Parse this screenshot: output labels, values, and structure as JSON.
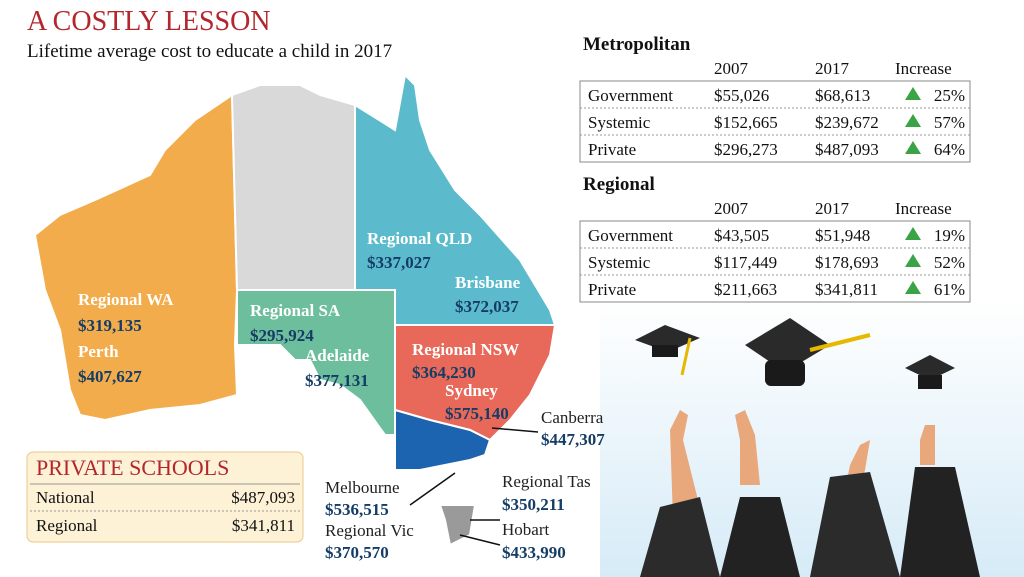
{
  "header": {
    "title": "A COSTLY LESSON",
    "subtitle": "Lifetime average cost to educate a child in 2017"
  },
  "map": {
    "regions": [
      {
        "name": "Regional WA",
        "cost": "$319,135"
      },
      {
        "name": "Perth",
        "cost": "$407,627"
      },
      {
        "name": "Regional SA",
        "cost": "$295,924"
      },
      {
        "name": "Adelaide",
        "cost": "$377,131"
      },
      {
        "name": "Regional QLD",
        "cost": "$337,027"
      },
      {
        "name": "Brisbane",
        "cost": "$372,037"
      },
      {
        "name": "Regional NSW",
        "cost": "$364,230"
      },
      {
        "name": "Sydney",
        "cost": "$575,140"
      },
      {
        "name": "Canberra",
        "cost": "$447,307"
      },
      {
        "name": "Melbourne",
        "cost": "$536,515"
      },
      {
        "name": "Regional Vic",
        "cost": "$370,570"
      },
      {
        "name": "Regional Tas",
        "cost": "$350,211"
      },
      {
        "name": "Hobart",
        "cost": "$433,990"
      }
    ]
  },
  "tables": [
    {
      "title": "Metropolitan",
      "columns": [
        "2007",
        "2017",
        "Increase"
      ],
      "rows": [
        {
          "label": "Government",
          "cells": [
            "$55,026",
            "$68,613",
            "25%"
          ]
        },
        {
          "label": "Systemic",
          "cells": [
            "$152,665",
            "$239,672",
            "57%"
          ]
        },
        {
          "label": "Private",
          "cells": [
            "$296,273",
            "$487,093",
            "64%"
          ]
        }
      ]
    },
    {
      "title": "Regional",
      "columns": [
        "2007",
        "2017",
        "Increase"
      ],
      "rows": [
        {
          "label": "Government",
          "cells": [
            "$43,505",
            "$51,948",
            "19%"
          ]
        },
        {
          "label": "Systemic",
          "cells": [
            "$117,449",
            "$178,693",
            "52%"
          ]
        },
        {
          "label": "Private",
          "cells": [
            "$211,663",
            "$341,811",
            "61%"
          ]
        }
      ]
    }
  ],
  "private_schools": {
    "title": "PRIVATE SCHOOLS",
    "rows": [
      {
        "label": "National",
        "value": "$487,093"
      },
      {
        "label": "Regional",
        "value": "$341,811"
      }
    ]
  }
}
